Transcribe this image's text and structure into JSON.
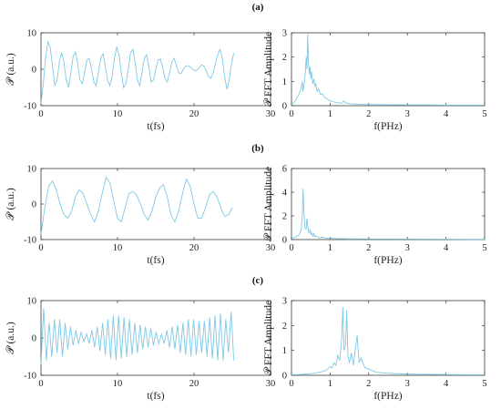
{
  "panel_labels": [
    "(a)",
    "(b)",
    "(c)"
  ],
  "colors": {
    "trace": "#7fc8e6",
    "axis": "#3a3a3a"
  },
  "chart_data": [
    {
      "id": "a-time",
      "type": "line",
      "xlabel": "t(fs)",
      "ylabel": "𝒫 (a.u.)",
      "xlim": [
        0,
        30
      ],
      "ylim": [
        -10,
        10
      ],
      "xticks": [
        "0",
        "10",
        "20",
        "30"
      ],
      "yticks": [
        "-10",
        "0",
        "10"
      ],
      "series": [
        {
          "x": [
            0,
            0.3,
            0.6,
            0.9,
            1.2,
            1.5,
            1.8,
            2.1,
            2.4,
            2.7,
            3.0,
            3.3,
            3.6,
            3.9,
            4.2,
            4.5,
            4.8,
            5.1,
            5.4,
            5.7,
            6.0,
            6.3,
            6.6,
            6.9,
            7.2,
            7.5,
            7.8,
            8.1,
            8.4,
            8.7,
            9.0,
            9.3,
            9.6,
            9.9,
            10.2,
            10.5,
            10.8,
            11.1,
            11.4,
            11.7,
            12.0,
            12.3,
            12.6,
            12.9,
            13.2,
            13.5,
            13.8,
            14.1,
            14.4,
            14.7,
            15.0,
            15.3,
            15.6,
            15.9,
            16.2,
            16.5,
            16.8,
            17.1,
            17.4,
            17.7,
            18.0,
            18.3,
            18.6,
            18.9,
            19.2,
            19.5,
            19.8,
            20.1,
            20.4,
            20.7,
            21.0,
            21.3,
            21.6,
            21.9,
            22.2,
            22.5,
            22.8,
            23.1,
            23.4,
            23.7,
            24.0,
            24.3,
            24.6,
            24.9,
            25.2
          ],
          "values": [
            -9.5,
            -4,
            3,
            7.5,
            6,
            1,
            -4.5,
            -3,
            2,
            4.5,
            2,
            -3,
            -5,
            -1,
            3.5,
            4.8,
            1.5,
            -3,
            -4,
            -1,
            2.5,
            3,
            0,
            -3.5,
            -4.5,
            -1,
            3,
            4.2,
            1,
            -3,
            -4.5,
            -2,
            3,
            6,
            4,
            -1,
            -5,
            -4,
            0,
            4.5,
            5.5,
            2,
            -3,
            -4.5,
            -1,
            3,
            4,
            0.5,
            -3.5,
            -3,
            0,
            2.5,
            2.8,
            0.5,
            -2.5,
            -3.5,
            -1,
            2,
            3,
            1,
            -1,
            -1.2,
            0,
            0.8,
            1,
            0.6,
            0,
            -0.5,
            -0.2,
            0.5,
            1.2,
            0.8,
            -0.5,
            -2,
            -2.5,
            -1,
            1.5,
            4,
            5.5,
            3,
            -2,
            -5.5,
            -3,
            1.5,
            4.5
          ]
        }
      ]
    },
    {
      "id": "a-fft",
      "type": "line",
      "xlabel": "f(PHz)",
      "ylabel": "𝒫 FFT Amplitude",
      "xlim": [
        0,
        5
      ],
      "ylim": [
        0,
        3
      ],
      "xticks": [
        "0",
        "1",
        "2",
        "3",
        "4",
        "5"
      ],
      "yticks": [
        "0",
        "1",
        "2",
        "3"
      ],
      "series": [
        {
          "x": [
            0,
            0.05,
            0.1,
            0.15,
            0.2,
            0.25,
            0.28,
            0.3,
            0.33,
            0.36,
            0.38,
            0.4,
            0.42,
            0.44,
            0.46,
            0.48,
            0.5,
            0.52,
            0.55,
            0.58,
            0.6,
            0.63,
            0.66,
            0.7,
            0.75,
            0.8,
            0.85,
            0.9,
            1.0,
            1.1,
            1.2,
            1.3,
            1.35,
            1.4,
            1.5,
            1.7,
            2.0,
            2.5,
            3.0,
            3.5,
            4.0,
            4.5,
            5.0
          ],
          "values": [
            0.05,
            0.1,
            0.2,
            0.35,
            0.5,
            0.7,
            1.0,
            0.6,
            0.9,
            1.4,
            2.0,
            1.5,
            2.95,
            1.8,
            1.3,
            1.6,
            1.1,
            1.4,
            0.9,
            1.1,
            0.8,
            0.9,
            0.6,
            0.7,
            0.45,
            0.5,
            0.35,
            0.3,
            0.2,
            0.15,
            0.12,
            0.1,
            0.2,
            0.12,
            0.08,
            0.06,
            0.05,
            0.04,
            0.03,
            0.03,
            0.02,
            0.02,
            0.02
          ]
        }
      ]
    },
    {
      "id": "b-time",
      "type": "line",
      "xlabel": "t(fs)",
      "ylabel": "𝒫 (a.u.)",
      "xlim": [
        0,
        30
      ],
      "ylim": [
        -10,
        10
      ],
      "xticks": [
        "0",
        "10",
        "20",
        "30"
      ],
      "yticks": [
        "-10",
        "0",
        "10"
      ],
      "series": [
        {
          "x": [
            0,
            0.5,
            1.0,
            1.5,
            2.0,
            2.5,
            3.0,
            3.5,
            4.0,
            4.5,
            5.0,
            5.5,
            6.0,
            6.5,
            7.0,
            7.5,
            8.0,
            8.5,
            9.0,
            9.5,
            10.0,
            10.5,
            11.0,
            11.5,
            12.0,
            12.5,
            13.0,
            13.5,
            14.0,
            14.5,
            15.0,
            15.5,
            16.0,
            16.5,
            17.0,
            17.5,
            18.0,
            18.5,
            19.0,
            19.5,
            20.0,
            20.5,
            21.0,
            21.5,
            22.0,
            22.5,
            23.0,
            23.5,
            24.0,
            24.5,
            25.0
          ],
          "values": [
            -8.5,
            -1,
            5,
            6.5,
            4,
            0,
            -3,
            -4,
            -2,
            2,
            4,
            3,
            0,
            -3,
            -5,
            -2,
            3,
            7.5,
            6,
            1,
            -4,
            -5,
            -1,
            3,
            3.5,
            2.5,
            0,
            -3,
            -4.5,
            -2,
            2,
            4.5,
            5.5,
            2,
            -3,
            -5,
            -2,
            3,
            7,
            5,
            0,
            -4,
            -4,
            -1,
            2.5,
            3.5,
            2,
            -1,
            -3.5,
            -3,
            -1
          ]
        }
      ]
    },
    {
      "id": "b-fft",
      "type": "line",
      "xlabel": "f(PHz)",
      "ylabel": "𝒫 FFT Amplitude",
      "xlim": [
        0,
        5
      ],
      "ylim": [
        0,
        6
      ],
      "xticks": [
        "0",
        "1",
        "2",
        "3",
        "4",
        "5"
      ],
      "yticks": [
        "0",
        "2",
        "4",
        "6"
      ],
      "series": [
        {
          "x": [
            0,
            0.1,
            0.2,
            0.25,
            0.28,
            0.3,
            0.32,
            0.35,
            0.38,
            0.4,
            0.42,
            0.45,
            0.48,
            0.5,
            0.52,
            0.55,
            0.58,
            0.6,
            0.65,
            0.7,
            0.8,
            0.9,
            1.0,
            1.2,
            1.5,
            2.0,
            3.0,
            4.0,
            5.0
          ],
          "values": [
            0.1,
            0.2,
            0.4,
            0.8,
            2.0,
            4.3,
            2.5,
            1.0,
            0.9,
            1.8,
            1.2,
            0.6,
            0.8,
            0.4,
            0.6,
            0.3,
            0.5,
            0.25,
            0.3,
            0.15,
            0.2,
            0.1,
            0.12,
            0.08,
            0.06,
            0.05,
            0.04,
            0.03,
            0.02
          ]
        }
      ]
    },
    {
      "id": "c-time",
      "type": "line",
      "xlabel": "t(fs)",
      "ylabel": "𝒫 (a.u.)",
      "xlim": [
        0,
        30
      ],
      "ylim": [
        -10,
        10
      ],
      "xticks": [
        "0",
        "10",
        "20",
        "30"
      ],
      "yticks": [
        "-10",
        "0",
        "10"
      ],
      "series": [
        {
          "x": [
            0,
            0.35,
            0.7,
            1.05,
            1.4,
            1.75,
            2.1,
            2.45,
            2.8,
            3.15,
            3.5,
            3.85,
            4.2,
            4.55,
            4.9,
            5.25,
            5.6,
            5.95,
            6.3,
            6.65,
            7.0,
            7.35,
            7.7,
            8.05,
            8.4,
            8.75,
            9.1,
            9.45,
            9.8,
            10.15,
            10.5,
            10.85,
            11.2,
            11.55,
            11.9,
            12.25,
            12.6,
            12.95,
            13.3,
            13.65,
            14.0,
            14.35,
            14.7,
            15.05,
            15.4,
            15.75,
            16.1,
            16.45,
            16.8,
            17.15,
            17.5,
            17.85,
            18.2,
            18.55,
            18.9,
            19.25,
            19.6,
            19.95,
            20.3,
            20.65,
            21.0,
            21.35,
            21.7,
            22.05,
            22.4,
            22.75,
            23.1,
            23.45,
            23.8,
            24.15,
            24.5,
            24.85,
            25.2
          ],
          "values": [
            -7,
            8,
            -6,
            4,
            -5,
            5,
            -4,
            5,
            -5,
            4,
            -3,
            3,
            -2,
            2,
            -1.5,
            1.5,
            -1,
            1,
            -1.5,
            2,
            -2.5,
            3,
            -3.5,
            4,
            -4.5,
            5,
            -5.5,
            6,
            -6,
            6,
            -5.5,
            5.5,
            -5,
            5,
            -4.5,
            4,
            -4,
            3.5,
            -3,
            3,
            -2.5,
            2.5,
            -2,
            1.5,
            -1.5,
            1,
            -1.5,
            2,
            -2.5,
            3,
            -3,
            3.5,
            -4,
            4,
            -4.5,
            5,
            -5,
            5,
            -4.5,
            4.5,
            -4,
            4.5,
            -5,
            5.5,
            -5.5,
            6,
            -6,
            6.5,
            -6,
            5,
            -4,
            7,
            -6
          ]
        }
      ]
    },
    {
      "id": "c-fft",
      "type": "line",
      "xlabel": "f(PHz)",
      "ylabel": "𝒫 FFT Amplitude",
      "xlim": [
        0,
        5
      ],
      "ylim": [
        0,
        3
      ],
      "xticks": [
        "0",
        "1",
        "2",
        "3",
        "4",
        "5"
      ],
      "yticks": [
        "0",
        "1",
        "2",
        "3"
      ],
      "series": [
        {
          "x": [
            0,
            0.2,
            0.4,
            0.6,
            0.8,
            0.9,
            1.0,
            1.05,
            1.1,
            1.15,
            1.2,
            1.25,
            1.3,
            1.33,
            1.36,
            1.4,
            1.43,
            1.46,
            1.5,
            1.55,
            1.6,
            1.65,
            1.7,
            1.75,
            1.8,
            1.9,
            2.0,
            2.2,
            2.5,
            3.0,
            3.5,
            4.0,
            4.5,
            5.0
          ],
          "values": [
            0.02,
            0.03,
            0.05,
            0.08,
            0.15,
            0.2,
            0.35,
            0.3,
            0.5,
            0.4,
            0.8,
            0.6,
            1.5,
            2.75,
            1.0,
            1.2,
            2.6,
            0.8,
            0.5,
            0.9,
            0.4,
            1.0,
            1.6,
            0.5,
            0.7,
            0.3,
            0.25,
            0.12,
            0.08,
            0.05,
            0.04,
            0.03,
            0.02,
            0.02
          ]
        }
      ]
    }
  ]
}
